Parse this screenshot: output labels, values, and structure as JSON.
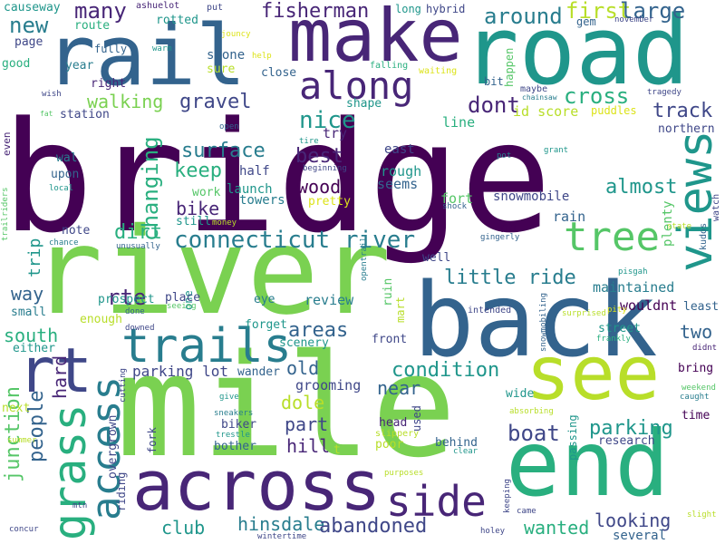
{
  "words": {
    "bridge": "bridge",
    "river": "river",
    "mile": "mile",
    "back": "back",
    "road": "road",
    "rail": "rail",
    "make": "make",
    "end": "end",
    "see": "see",
    "across": "across",
    "trails": "trails",
    "rt": "rt",
    "along": "along",
    "side": "side",
    "views": "views",
    "grass": "grass",
    "access": "access",
    "tree": "tree",
    "connecticut": "connecticut",
    "connecticut_river": "connecticut river",
    "fisherman": "fisherman",
    "many": "many",
    "new": "new",
    "around": "around",
    "first": "first",
    "large": "large",
    "dont": "dont",
    "cross": "cross",
    "track": "track",
    "nice": "nice",
    "gravel": "gravel",
    "walking": "walking",
    "surface": "surface",
    "keep": "keep",
    "best": "best",
    "wood": "wood",
    "changing": "changing",
    "bike": "bike",
    "dirt": "dirt",
    "almost": "almost",
    "little_ride": "little ride",
    "boat": "boat",
    "parking": "parking",
    "parking_lot": "parking lot",
    "junction": "junction",
    "people": "people",
    "hard": "hard",
    "south": "south",
    "way": "way",
    "trip": "trip",
    "rte": "rte",
    "areas": "areas",
    "two": "two",
    "condition": "condition",
    "hill": "hill",
    "part": "part",
    "dole": "dole",
    "old": "old",
    "near": "near",
    "club": "club",
    "hinsdale": "hinsdale",
    "abandoned": "abandoned",
    "wanted": "wanted",
    "looking": "looking",
    "several": "several",
    "maintained": "maintained",
    "wouldnt": "wouldnt",
    "review": "review",
    "grooming": "grooming",
    "scenery": "scenery",
    "plenty": "plenty",
    "rain": "rain",
    "snowmobile": "snowmobile",
    "rough": "rough",
    "seems": "seems",
    "fort": "fort",
    "nh": "nh",
    "east": "east",
    "northern": "northern",
    "id_score": "id score",
    "puddles": "puddles",
    "line": "line",
    "try": "try",
    "towers": "towers",
    "launch": "launch",
    "work": "work",
    "half": "half",
    "pretty": "pretty",
    "stone": "stone",
    "sure": "sure",
    "close": "close",
    "shape": "shape",
    "station": "station",
    "right": "right",
    "year": "year",
    "page": "page",
    "good": "good",
    "causeway": "causeway",
    "route": "route",
    "fully": "fully",
    "rotted": "rotted",
    "ashuelot": "ashuelot",
    "put": "put",
    "long": "long",
    "hybrid": "hybrid",
    "gem": "gem",
    "november": "november",
    "happen": "happen",
    "bit": "bit",
    "maybe": "maybe",
    "chainsaw": "chainsaw",
    "tragedy": "tragedy",
    "falling": "falling",
    "waiting": "waiting",
    "help": "help",
    "jouncy": "jouncy",
    "warm": "warm",
    "wish": "wish",
    "fat": "fat",
    "open": "open",
    "tire": "tire",
    "beginning": "beginning",
    "pot": "pot",
    "grant": "grant",
    "shock": "shock",
    "even": "even",
    "wal": "wal",
    "upon": "upon",
    "local": "local",
    "note": "note",
    "chance": "chance",
    "unusually": "unusually",
    "still": "still",
    "money": "money",
    "gingerly": "gingerly",
    "state": "state",
    "kudos": "kudos",
    "watch": "watch",
    "pisgah": "pisgah",
    "pity": "pity",
    "well": "well",
    "opentrail": "opentrail",
    "prospect": "prospect",
    "one": "one",
    "place": "place",
    "eye": "eye",
    "done": "done",
    "small": "small",
    "enough": "enough",
    "seeing": "seeing",
    "forget": "forget",
    "ruin": "ruin",
    "mart": "mart",
    "intended": "intended",
    "snowmobiling": "snowmobiling",
    "street": "street",
    "surprised": "surprised",
    "frankly": "frankly",
    "didnt": "didnt",
    "least": "least",
    "downed": "downed",
    "either": "either",
    "front": "front",
    "wander": "wander",
    "bring": "bring",
    "weekend": "weekend",
    "caught": "caught",
    "cutting": "cutting",
    "give": "give",
    "next": "next",
    "wide": "wide",
    "time": "time",
    "head": "head",
    "used": "used",
    "absorbing": "absorbing",
    "biker": "biker",
    "sneakers": "sneakers",
    "trestle": "trestle",
    "overgrown": "overgrown",
    "slippery": "slippery",
    "poor": "poor",
    "behind": "behind",
    "clear": "clear",
    "research": "research",
    "passing": "passing",
    "summer": "summer",
    "fork": "fork",
    "bother": "bother",
    "riding": "riding",
    "purposes": "purposes",
    "keeping": "keeping",
    "mtn": "mtn",
    "came": "came",
    "slight": "slight",
    "concur": "concur",
    "wintertime": "wintertime",
    "holey": "holey",
    "trailriders": "trailriders",
    "t": "t"
  },
  "palette": [
    "#440154",
    "#482677",
    "#3f4788",
    "#33638d",
    "#287d8e",
    "#1f968b",
    "#29af7f",
    "#55c667",
    "#7ad151",
    "#b8de29",
    "#dce319"
  ]
}
